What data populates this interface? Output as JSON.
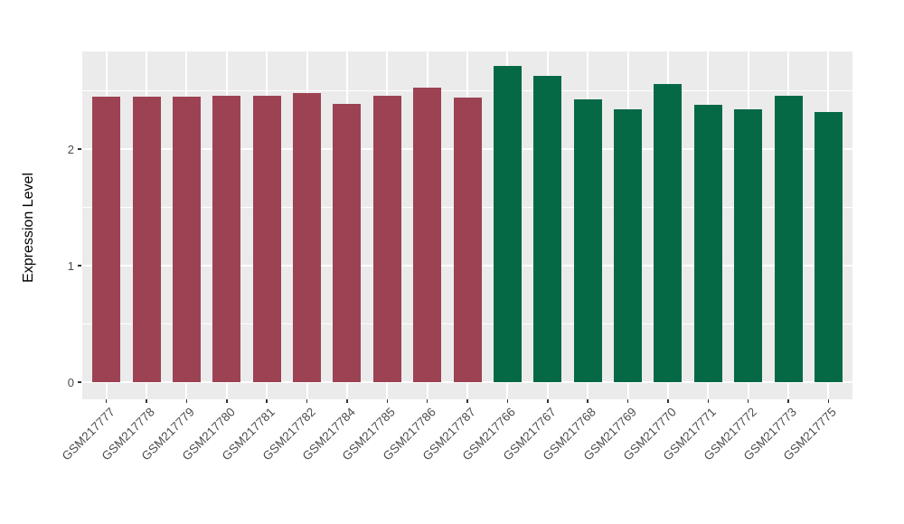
{
  "chart_data": {
    "type": "bar",
    "title": "",
    "xlabel": "",
    "ylabel": "Expression Level",
    "categories": [
      "GSM217777",
      "GSM217778",
      "GSM217779",
      "GSM217780",
      "GSM217781",
      "GSM217782",
      "GSM217784",
      "GSM217785",
      "GSM217786",
      "GSM217787",
      "GSM217766",
      "GSM217767",
      "GSM217768",
      "GSM217769",
      "GSM217770",
      "GSM217771",
      "GSM217772",
      "GSM217773",
      "GSM217775"
    ],
    "values": [
      2.45,
      2.45,
      2.45,
      2.46,
      2.46,
      2.48,
      2.39,
      2.46,
      2.53,
      2.44,
      2.71,
      2.63,
      2.43,
      2.34,
      2.56,
      2.38,
      2.34,
      2.46,
      2.32
    ],
    "bar_colors": [
      "#9d4253",
      "#9d4253",
      "#9d4253",
      "#9d4253",
      "#9d4253",
      "#9d4253",
      "#9d4253",
      "#9d4253",
      "#9d4253",
      "#9d4253",
      "#066946",
      "#066946",
      "#066946",
      "#066946",
      "#066946",
      "#066946",
      "#066946",
      "#066946",
      "#066946"
    ],
    "color_groups": [
      {
        "name": "maroon-group",
        "color": "#9d4253",
        "categories_from": "GSM217777",
        "categories_to": "GSM217787"
      },
      {
        "name": "green-group",
        "color": "#066946",
        "categories_from": "GSM217766",
        "categories_to": "GSM217775"
      }
    ],
    "y_ticks": [
      0,
      1,
      2
    ],
    "y_minor_gridlines": [
      0.5,
      1.5,
      2.5
    ],
    "ylim": [
      -0.15,
      2.84
    ],
    "grid": "on",
    "legend": "none"
  },
  "style": {
    "panel_background": "#ebebeb",
    "gridline_color": "#ffffff",
    "axis_text_color": "#4d4d4d",
    "axis_title_color": "#000000",
    "tick_mark_color": "#333333",
    "figure_background": "#ffffff"
  }
}
